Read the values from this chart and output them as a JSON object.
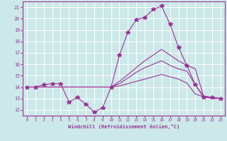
{
  "title": "",
  "xlabel": "Windchill (Refroidissement éolien,°C)",
  "background_color": "#cce8e8",
  "grid_color": "#ffffff",
  "line_color": "#993399",
  "ylim": [
    11.5,
    21.5
  ],
  "xlim": [
    -0.5,
    23.5
  ],
  "yticks": [
    12,
    13,
    14,
    15,
    16,
    17,
    18,
    19,
    20,
    21
  ],
  "xticks": [
    0,
    1,
    2,
    3,
    4,
    5,
    6,
    7,
    8,
    9,
    10,
    11,
    12,
    13,
    14,
    15,
    16,
    17,
    18,
    19,
    20,
    21,
    22,
    23
  ],
  "series": [
    {
      "x": [
        0,
        1,
        2,
        3,
        4,
        5,
        6,
        7,
        8,
        9,
        10,
        11,
        12,
        13,
        14,
        15,
        16,
        17,
        18,
        19,
        20,
        21,
        22,
        23
      ],
      "y": [
        14,
        14,
        14.2,
        14.3,
        14.3,
        12.7,
        13.1,
        12.5,
        11.8,
        12.2,
        14,
        16.8,
        18.8,
        19.9,
        20.1,
        20.8,
        21.1,
        19.5,
        17.5,
        15.9,
        14.2,
        13.1,
        13.1,
        13.0
      ],
      "marker": "*",
      "linestyle": "-"
    },
    {
      "x": [
        0,
        1,
        2,
        3,
        4,
        5,
        6,
        7,
        8,
        9,
        10,
        11,
        12,
        13,
        14,
        15,
        16,
        17,
        18,
        19,
        20,
        21,
        22,
        23
      ],
      "y": [
        14,
        14,
        14,
        14,
        14,
        14,
        14,
        14,
        14,
        14,
        14,
        14.5,
        15.1,
        15.7,
        16.3,
        16.8,
        17.3,
        16.8,
        16.3,
        15.9,
        15.6,
        13.2,
        13.1,
        13.0
      ],
      "marker": null,
      "linestyle": "-"
    },
    {
      "x": [
        0,
        1,
        2,
        3,
        4,
        5,
        6,
        7,
        8,
        9,
        10,
        11,
        12,
        13,
        14,
        15,
        16,
        17,
        18,
        19,
        20,
        21,
        22,
        23
      ],
      "y": [
        14,
        14,
        14,
        14,
        14,
        14,
        14,
        14,
        14,
        14,
        14,
        14.3,
        14.8,
        15.3,
        15.7,
        16.0,
        16.3,
        15.9,
        15.6,
        15.4,
        14.2,
        13.2,
        13.1,
        13.0
      ],
      "marker": null,
      "linestyle": "-"
    },
    {
      "x": [
        0,
        1,
        2,
        3,
        4,
        5,
        6,
        7,
        8,
        9,
        10,
        11,
        12,
        13,
        14,
        15,
        16,
        17,
        18,
        19,
        20,
        21,
        22,
        23
      ],
      "y": [
        14,
        14,
        14,
        14,
        14,
        14,
        14,
        14,
        14,
        14,
        14,
        14.1,
        14.3,
        14.5,
        14.7,
        14.9,
        15.1,
        14.9,
        14.7,
        14.35,
        13.4,
        13.15,
        13.0,
        13.0
      ],
      "marker": null,
      "linestyle": "-"
    }
  ]
}
